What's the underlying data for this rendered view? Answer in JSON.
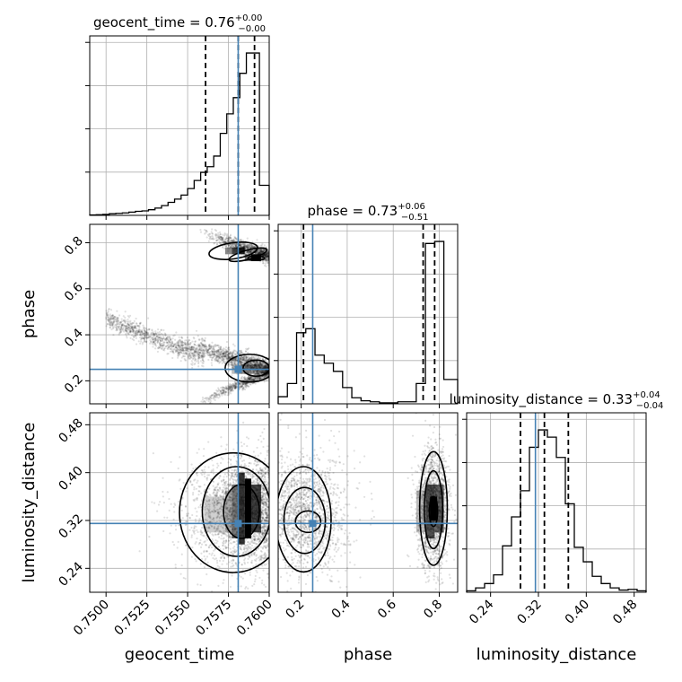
{
  "chart_data": {
    "type": "corner",
    "parameters": [
      "geocent_time",
      "phase",
      "luminosity_distance"
    ],
    "truths": {
      "geocent_time": 0.7581,
      "phase": 0.25,
      "luminosity_distance": 0.315
    },
    "grid": true,
    "diagonal": [
      {
        "param": "geocent_time",
        "title": {
          "prefix": "geocent_time = ",
          "value": "0.76",
          "plus": "+0.00",
          "minus": "−0.00"
        },
        "range": [
          0.749,
          0.76
        ],
        "quantiles": [
          0.7561,
          0.7581,
          0.7591
        ],
        "bin_edges": [
          0.749,
          0.7494,
          0.7498,
          0.7502,
          0.7506,
          0.751,
          0.7514,
          0.7518,
          0.7522,
          0.7526,
          0.753,
          0.7534,
          0.7538,
          0.7542,
          0.7546,
          0.755,
          0.7554,
          0.7558,
          0.7562,
          0.7566,
          0.757,
          0.7574,
          0.7578,
          0.7582,
          0.7586,
          0.759,
          0.7594,
          0.7598,
          0.76
        ],
        "counts": [
          0.005,
          0.008,
          0.012,
          0.02,
          0.025,
          0.03,
          0.04,
          0.05,
          0.055,
          0.07,
          0.09,
          0.12,
          0.16,
          0.2,
          0.25,
          0.33,
          0.43,
          0.53,
          0.6,
          0.73,
          1.01,
          1.25,
          1.45,
          1.75,
          2.0,
          2.0,
          0.37,
          0.37
        ]
      },
      {
        "param": "phase",
        "title": {
          "prefix": "phase = ",
          "value": "0.73",
          "plus": "+0.06",
          "minus": "−0.51"
        },
        "range": [
          0.1,
          0.88
        ],
        "quantiles": [
          0.21,
          0.73,
          0.78
        ],
        "bin_edges": [
          0.1,
          0.14,
          0.18,
          0.22,
          0.26,
          0.3,
          0.34,
          0.38,
          0.42,
          0.46,
          0.5,
          0.54,
          0.58,
          0.62,
          0.66,
          0.7,
          0.74,
          0.78,
          0.82,
          0.88
        ],
        "counts": [
          0.035,
          0.1,
          0.35,
          0.37,
          0.24,
          0.2,
          0.16,
          0.08,
          0.03,
          0.015,
          0.01,
          0.005,
          0.005,
          0.01,
          0.01,
          0.1,
          0.79,
          0.8,
          0.12
        ]
      },
      {
        "param": "luminosity_distance",
        "title": {
          "prefix": "luminosity_distance = ",
          "value": "0.33",
          "plus": "+0.04",
          "minus": "−0.04"
        },
        "range": [
          0.2,
          0.5
        ],
        "quantiles": [
          0.29,
          0.33,
          0.37
        ],
        "bin_edges": [
          0.2,
          0.215,
          0.23,
          0.245,
          0.26,
          0.275,
          0.29,
          0.305,
          0.32,
          0.335,
          0.35,
          0.365,
          0.38,
          0.395,
          0.41,
          0.425,
          0.44,
          0.455,
          0.47,
          0.485,
          0.5
        ],
        "counts": [
          0.01,
          0.03,
          0.06,
          0.12,
          0.32,
          0.52,
          0.7,
          1.0,
          1.12,
          1.07,
          0.93,
          0.61,
          0.31,
          0.21,
          0.11,
          0.06,
          0.03,
          0.015,
          0.02,
          0.01
        ]
      }
    ],
    "axes": {
      "geocent_time": {
        "label": "geocent_time",
        "ticks": [
          0.75,
          0.7525,
          0.755,
          0.7575,
          0.76
        ],
        "tick_labels": [
          "0.7500",
          "0.7525",
          "0.7550",
          "0.7575",
          "0.7600"
        ]
      },
      "phase": {
        "label": "phase",
        "ticks_x": [
          0.2,
          0.4,
          0.6,
          0.8
        ],
        "tick_labels_x": [
          "0.2",
          "0.4",
          "0.6",
          "0.8"
        ],
        "ticks_y": [
          0.2,
          0.4,
          0.6,
          0.8
        ],
        "tick_labels_y": [
          "0.2",
          "0.4",
          "0.6",
          "0.8"
        ]
      },
      "luminosity_distance": {
        "label": "luminosity_distance",
        "ticks": [
          0.24,
          0.32,
          0.4,
          0.48
        ],
        "tick_labels": [
          "0.24",
          "0.32",
          "0.40",
          "0.48"
        ]
      }
    },
    "off_diagonal": [
      {
        "x": "geocent_time",
        "y": "phase"
      },
      {
        "x": "geocent_time",
        "y": "luminosity_distance"
      },
      {
        "x": "phase",
        "y": "luminosity_distance"
      }
    ],
    "truth_color": "#4682b4"
  }
}
